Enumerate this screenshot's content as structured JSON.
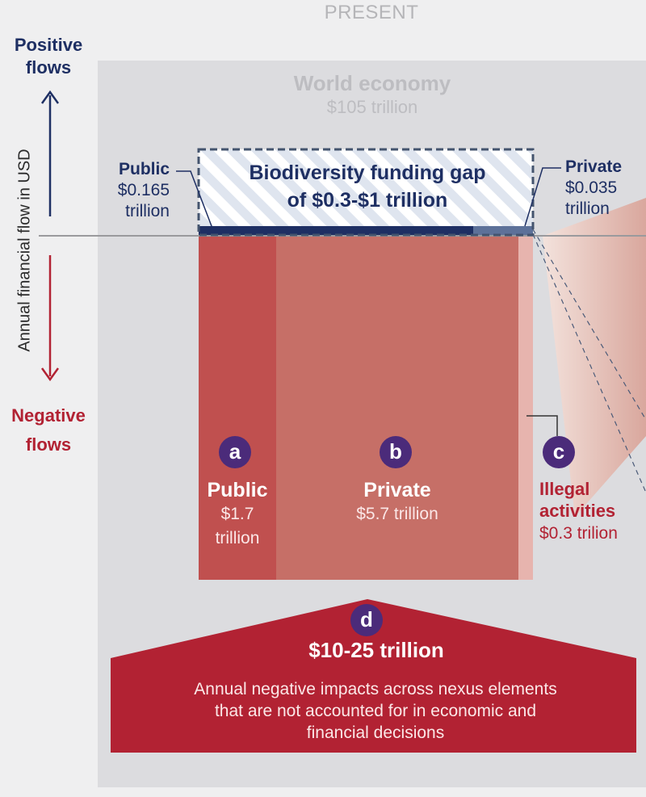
{
  "header": {
    "period": "PRESENT",
    "world_title": "World economy",
    "world_value": "$105 trillion"
  },
  "axis": {
    "positive_line1": "Positive",
    "positive_line2": "flows",
    "negative_line1": "Negative",
    "negative_line2": "flows",
    "label": "Annual financial flow in USD"
  },
  "positive_flows": {
    "public_label": "Public",
    "public_value": "$0.165",
    "public_unit": "trillion",
    "private_label": "Private",
    "private_value": "$0.035",
    "private_unit": "trillion",
    "gap_line1": "Biodiversity funding gap",
    "gap_line2": "of $0.3-$1 trillion"
  },
  "negative_flows": {
    "a": {
      "marker": "a",
      "label": "Public",
      "value": "$1.7",
      "unit": "trillion"
    },
    "b": {
      "marker": "b",
      "label": "Private",
      "value": "$5.7 trillion"
    },
    "c": {
      "marker": "c",
      "label_line1": "Illegal",
      "label_line2": "activities",
      "value": "$0.3 trilion"
    },
    "d": {
      "marker": "d",
      "amount": "$10-25 trillion",
      "desc_line1": "Annual negative impacts across nexus elements",
      "desc_line2": "that are not accounted for in economic and",
      "desc_line3": "financial decisions"
    }
  },
  "colors": {
    "navy": "#1e2f63",
    "red": "#b22233",
    "public_bar": "#c0504f",
    "private_bar": "#c66f67",
    "illegal_bar": "#e7b4ae",
    "marker": "#4b2b7a"
  }
}
